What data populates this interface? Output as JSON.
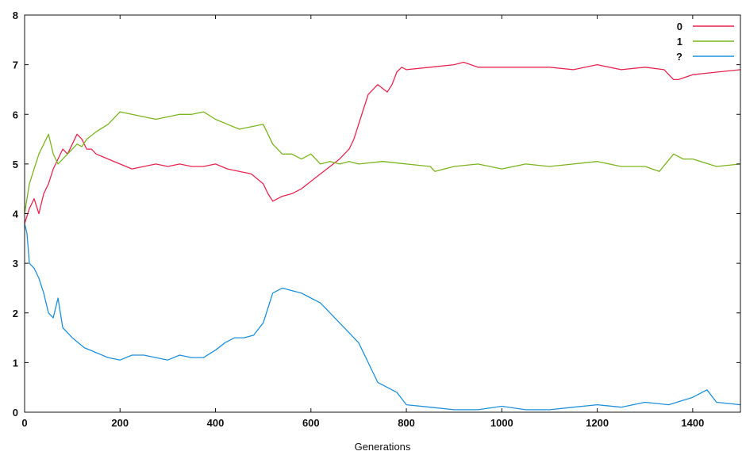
{
  "chart_data": {
    "type": "line",
    "title": "",
    "xlabel": "Generations",
    "ylabel": "",
    "xlim": [
      0,
      1500
    ],
    "ylim": [
      0,
      8
    ],
    "xticks": [
      0,
      200,
      400,
      600,
      800,
      1000,
      1200,
      1400
    ],
    "yticks": [
      0,
      1,
      2,
      3,
      4,
      5,
      6,
      7,
      8
    ],
    "grid": false,
    "legend_position": "top-right",
    "series": [
      {
        "name": "0",
        "color": "#e8254f",
        "x": [
          0,
          10,
          20,
          30,
          40,
          50,
          60,
          70,
          80,
          90,
          100,
          110,
          120,
          130,
          140,
          150,
          175,
          200,
          225,
          250,
          275,
          300,
          325,
          350,
          375,
          400,
          425,
          450,
          475,
          500,
          510,
          520,
          540,
          560,
          580,
          600,
          620,
          640,
          660,
          680,
          690,
          700,
          710,
          720,
          740,
          760,
          770,
          780,
          790,
          800,
          850,
          900,
          920,
          950,
          1000,
          1050,
          1100,
          1150,
          1200,
          1250,
          1300,
          1340,
          1350,
          1360,
          1370,
          1400,
          1450,
          1500
        ],
        "y": [
          3.8,
          4.1,
          4.3,
          4.0,
          4.4,
          4.6,
          4.9,
          5.1,
          5.3,
          5.2,
          5.4,
          5.6,
          5.5,
          5.3,
          5.3,
          5.2,
          5.1,
          5.0,
          4.9,
          4.95,
          5.0,
          4.95,
          5.0,
          4.95,
          4.95,
          5.0,
          4.9,
          4.85,
          4.8,
          4.6,
          4.4,
          4.25,
          4.35,
          4.4,
          4.5,
          4.65,
          4.8,
          4.95,
          5.1,
          5.3,
          5.5,
          5.8,
          6.1,
          6.4,
          6.6,
          6.45,
          6.6,
          6.85,
          6.95,
          6.9,
          6.95,
          7.0,
          7.05,
          6.95,
          6.95,
          6.95,
          6.95,
          6.9,
          7.0,
          6.9,
          6.95,
          6.9,
          6.8,
          6.7,
          6.7,
          6.8,
          6.85,
          6.9
        ]
      },
      {
        "name": "1",
        "color": "#7ab51d",
        "x": [
          0,
          10,
          20,
          30,
          40,
          50,
          60,
          70,
          80,
          90,
          100,
          110,
          120,
          130,
          150,
          175,
          200,
          225,
          250,
          275,
          300,
          325,
          350,
          375,
          400,
          425,
          450,
          475,
          500,
          510,
          520,
          540,
          560,
          580,
          600,
          620,
          640,
          660,
          680,
          700,
          750,
          800,
          850,
          860,
          900,
          950,
          1000,
          1050,
          1100,
          1150,
          1200,
          1250,
          1300,
          1330,
          1360,
          1380,
          1400,
          1450,
          1500
        ],
        "y": [
          4.0,
          4.6,
          4.9,
          5.2,
          5.4,
          5.6,
          5.2,
          5.0,
          5.1,
          5.2,
          5.3,
          5.4,
          5.35,
          5.5,
          5.65,
          5.8,
          6.05,
          6.0,
          5.95,
          5.9,
          5.95,
          6.0,
          6.0,
          6.05,
          5.9,
          5.8,
          5.7,
          5.75,
          5.8,
          5.6,
          5.4,
          5.2,
          5.2,
          5.1,
          5.2,
          5.0,
          5.05,
          5.0,
          5.05,
          5.0,
          5.05,
          5.0,
          4.95,
          4.85,
          4.95,
          5.0,
          4.9,
          5.0,
          4.95,
          5.0,
          5.05,
          4.95,
          4.95,
          4.85,
          5.2,
          5.1,
          5.1,
          4.95,
          5.0
        ]
      },
      {
        "name": "?",
        "color": "#1e90dc",
        "x": [
          0,
          5,
          10,
          20,
          30,
          40,
          50,
          60,
          70,
          80,
          90,
          100,
          125,
          150,
          175,
          200,
          225,
          250,
          275,
          300,
          325,
          350,
          375,
          400,
          420,
          440,
          460,
          480,
          500,
          510,
          520,
          540,
          560,
          580,
          600,
          620,
          640,
          660,
          680,
          700,
          720,
          740,
          760,
          780,
          800,
          850,
          900,
          950,
          1000,
          1050,
          1100,
          1150,
          1200,
          1250,
          1300,
          1350,
          1400,
          1430,
          1450,
          1500
        ],
        "y": [
          3.8,
          3.6,
          3.0,
          2.9,
          2.7,
          2.4,
          2.0,
          1.9,
          2.3,
          1.7,
          1.6,
          1.5,
          1.3,
          1.2,
          1.1,
          1.05,
          1.15,
          1.15,
          1.1,
          1.05,
          1.15,
          1.1,
          1.1,
          1.25,
          1.4,
          1.5,
          1.5,
          1.55,
          1.8,
          2.1,
          2.4,
          2.5,
          2.45,
          2.4,
          2.3,
          2.2,
          2.0,
          1.8,
          1.6,
          1.4,
          1.0,
          0.6,
          0.5,
          0.4,
          0.15,
          0.1,
          0.05,
          0.05,
          0.12,
          0.05,
          0.05,
          0.1,
          0.15,
          0.1,
          0.2,
          0.15,
          0.3,
          0.45,
          0.2,
          0.15
        ]
      }
    ]
  }
}
